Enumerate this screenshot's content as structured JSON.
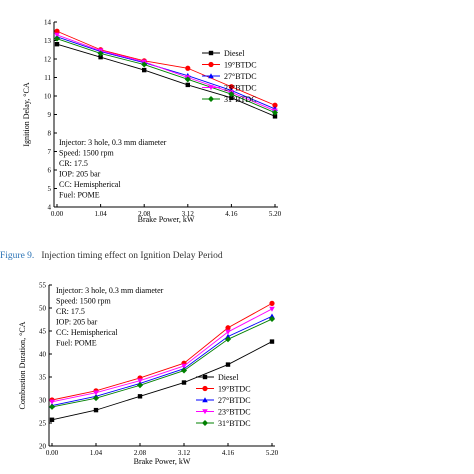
{
  "figure9": {
    "caption_label": "Figure 9.",
    "caption_text": "Injection timing effect on Ignition Delay Period",
    "caption_color": "#2e75b6"
  },
  "chart_data": [
    {
      "type": "line",
      "xlabel": "Brake Power, kW",
      "ylabel": "Ignition Delay, °CA",
      "x": [
        0.0,
        1.04,
        2.08,
        3.12,
        4.16,
        5.2
      ],
      "x_ticks": [
        "0.00",
        "1.04",
        "2.08",
        "3.12",
        "4.16",
        "5.20"
      ],
      "ylim": [
        4,
        14
      ],
      "y_ticks": [
        "4",
        "5",
        "6",
        "7",
        "8",
        "9",
        "10",
        "11",
        "12",
        "13",
        "14"
      ],
      "legend_position": "top-right",
      "annotation": [
        "Injector: 3 hole, 0.3 mm diameter",
        "Speed: 1500 rpm",
        "CR: 17.5",
        "IOP: 205 bar",
        "CC: Hemispherical",
        "Fuel: POME"
      ],
      "series": [
        {
          "name": "Diesel",
          "color": "#000000",
          "marker": "square",
          "values": [
            12.8,
            12.1,
            11.4,
            10.6,
            9.9,
            8.9
          ]
        },
        {
          "name": "19°BTDC",
          "color": "#ff0000",
          "marker": "circle",
          "values": [
            13.5,
            12.5,
            11.9,
            11.5,
            10.5,
            9.5
          ]
        },
        {
          "name": "27°BTDC",
          "color": "#0000ff",
          "marker": "triangle-up",
          "values": [
            13.2,
            12.4,
            11.8,
            11.1,
            10.3,
            9.3
          ]
        },
        {
          "name": "23°BTDC",
          "color": "#ff00ff",
          "marker": "triangle-down",
          "values": [
            13.3,
            12.45,
            11.85,
            11.0,
            10.2,
            9.2
          ]
        },
        {
          "name": "31°BTDC",
          "color": "#008000",
          "marker": "diamond",
          "values": [
            13.1,
            12.3,
            11.7,
            10.9,
            10.1,
            9.1
          ]
        }
      ]
    },
    {
      "type": "line",
      "xlabel": "Brake Power, kW",
      "ylabel": "Combustion Duration, °CA",
      "x": [
        0.0,
        1.04,
        2.08,
        3.12,
        4.16,
        5.2
      ],
      "x_ticks": [
        "0.00",
        "1.04",
        "2.08",
        "3.12",
        "4.16",
        "5.20"
      ],
      "ylim": [
        20,
        55
      ],
      "y_ticks": [
        "20",
        "25",
        "30",
        "35",
        "40",
        "45",
        "50",
        "55"
      ],
      "legend_position": "bottom-right",
      "annotation": [
        "Injector: 3 hole, 0.3 mm diameter",
        "Speed: 1500 rpm",
        "CR: 17.5",
        "IOP: 205 bar",
        "CC: Hemispherical",
        "Fuel: POME"
      ],
      "series": [
        {
          "name": "Diesel",
          "color": "#000000",
          "marker": "square",
          "values": [
            25.7,
            27.8,
            30.8,
            33.8,
            37.7,
            42.7
          ]
        },
        {
          "name": "19°BTDC",
          "color": "#ff0000",
          "marker": "circle",
          "values": [
            30.0,
            32.0,
            34.8,
            38.0,
            45.7,
            51.0
          ]
        },
        {
          "name": "27°BTDC",
          "color": "#0000ff",
          "marker": "triangle-up",
          "values": [
            28.8,
            30.8,
            33.6,
            36.8,
            43.8,
            48.2
          ]
        },
        {
          "name": "23°BTDC",
          "color": "#ff00ff",
          "marker": "triangle-down",
          "values": [
            29.6,
            31.6,
            34.2,
            37.4,
            44.8,
            49.8
          ]
        },
        {
          "name": "31°BTDC",
          "color": "#008000",
          "marker": "diamond",
          "values": [
            28.5,
            30.4,
            33.2,
            36.4,
            43.2,
            47.6
          ]
        }
      ]
    }
  ]
}
